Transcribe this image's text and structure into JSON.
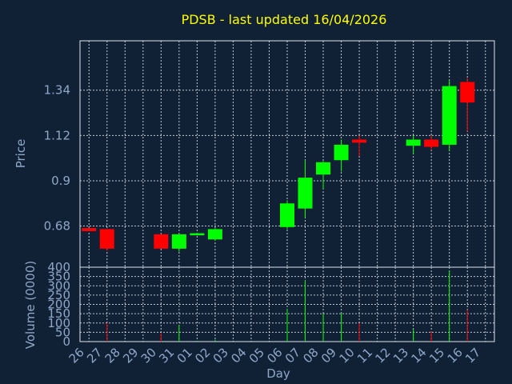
{
  "chart_data": [
    {
      "type": "candlestick",
      "title": "PDSB - last updated 16/04/2026",
      "ylabel": "Price",
      "ylim": [
        0.48,
        1.58
      ],
      "yticks": [
        0.68,
        0.9,
        1.12,
        1.34
      ],
      "ytick_labels": [
        "0.68",
        "0.9",
        "1.12",
        "1.34"
      ],
      "grid": true,
      "categories": [
        "26",
        "27",
        "28",
        "29",
        "30",
        "31",
        "01",
        "02",
        "03",
        "04",
        "05",
        "06",
        "07",
        "08",
        "09",
        "10",
        "11",
        "12",
        "13",
        "14",
        "15",
        "16",
        "17"
      ],
      "candles": [
        {
          "x": "26",
          "open": 0.67,
          "high": 0.67,
          "low": 0.655,
          "close": 0.655
        },
        {
          "x": "27",
          "open": 0.665,
          "high": 0.665,
          "low": 0.56,
          "close": 0.57
        },
        {
          "x": "30",
          "open": 0.64,
          "high": 0.64,
          "low": 0.57,
          "close": 0.57
        },
        {
          "x": "31",
          "open": 0.57,
          "high": 0.64,
          "low": 0.555,
          "close": 0.64
        },
        {
          "x": "01",
          "open": 0.635,
          "high": 0.645,
          "low": 0.635,
          "close": 0.645
        },
        {
          "x": "02",
          "open": 0.615,
          "high": 0.67,
          "low": 0.61,
          "close": 0.665
        },
        {
          "x": "06",
          "open": 0.675,
          "high": 0.805,
          "low": 0.665,
          "close": 0.79
        },
        {
          "x": "07",
          "open": 0.765,
          "high": 1.0,
          "low": 0.72,
          "close": 0.915
        },
        {
          "x": "08",
          "open": 0.93,
          "high": 0.995,
          "low": 0.86,
          "close": 0.99
        },
        {
          "x": "09",
          "open": 1.0,
          "high": 1.1,
          "low": 0.945,
          "close": 1.075
        },
        {
          "x": "10",
          "open": 1.1,
          "high": 1.12,
          "low": 1.02,
          "close": 1.085
        },
        {
          "x": "13",
          "open": 1.07,
          "high": 1.12,
          "low": 1.03,
          "close": 1.1
        },
        {
          "x": "14",
          "open": 1.1,
          "high": 1.12,
          "low": 1.05,
          "close": 1.065
        },
        {
          "x": "15",
          "open": 1.075,
          "high": 1.39,
          "low": 1.045,
          "close": 1.36
        },
        {
          "x": "16",
          "open": 1.38,
          "high": 1.4,
          "low": 1.14,
          "close": 1.28
        }
      ],
      "colors": {
        "up": "#00ff00",
        "down": "#ff0000"
      }
    },
    {
      "type": "bar",
      "xlabel": "Day",
      "ylabel": "Volume (0000)",
      "ylim": [
        0,
        400
      ],
      "yticks": [
        0,
        50,
        100,
        150,
        200,
        250,
        300,
        350,
        400
      ],
      "ytick_labels": [
        "0",
        "50",
        "100",
        "150",
        "200",
        "250",
        "300",
        "350",
        "400"
      ],
      "grid": true,
      "categories": [
        "26",
        "27",
        "28",
        "29",
        "30",
        "31",
        "01",
        "02",
        "03",
        "04",
        "05",
        "06",
        "07",
        "08",
        "09",
        "10",
        "11",
        "12",
        "13",
        "14",
        "15",
        "16",
        "17"
      ],
      "bars": [
        {
          "x": "27",
          "value": 100,
          "direction": "down"
        },
        {
          "x": "30",
          "value": 45,
          "direction": "down"
        },
        {
          "x": "31",
          "value": 90,
          "direction": "up"
        },
        {
          "x": "01",
          "value": 4,
          "direction": "up"
        },
        {
          "x": "02",
          "value": 10,
          "direction": "up"
        },
        {
          "x": "06",
          "value": 175,
          "direction": "up"
        },
        {
          "x": "07",
          "value": 330,
          "direction": "up"
        },
        {
          "x": "08",
          "value": 150,
          "direction": "up"
        },
        {
          "x": "09",
          "value": 155,
          "direction": "up"
        },
        {
          "x": "10",
          "value": 100,
          "direction": "down"
        },
        {
          "x": "13",
          "value": 65,
          "direction": "up"
        },
        {
          "x": "14",
          "value": 55,
          "direction": "down"
        },
        {
          "x": "15",
          "value": 380,
          "direction": "up"
        },
        {
          "x": "16",
          "value": 170,
          "direction": "down"
        }
      ]
    }
  ]
}
